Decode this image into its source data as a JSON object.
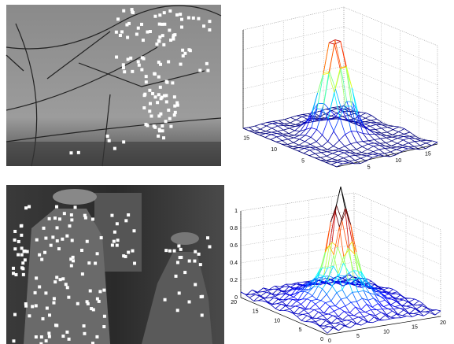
{
  "panels": [
    {
      "plot": {
        "x_ticks": [
          "5",
          "10",
          "15"
        ],
        "y_ticks": [
          "15",
          "10",
          "5"
        ]
      }
    },
    {
      "plot": {
        "z_ticks": [
          "0",
          "0.2",
          "0.4",
          "0.6",
          "0.8",
          "1"
        ],
        "y_ticks": [
          "20",
          "15",
          "10",
          "5",
          "0"
        ],
        "x_ticks": [
          "0",
          "5",
          "10",
          "15",
          "20"
        ]
      }
    }
  ]
}
